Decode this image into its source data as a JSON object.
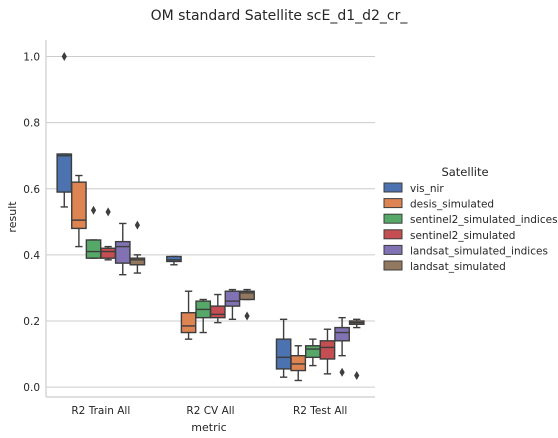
{
  "chart_data": {
    "type": "box",
    "title": "OM standard Satellite scE_d1_d2_cr_",
    "xlabel": "metric",
    "ylabel": "result",
    "ylim": [
      -0.03,
      1.05
    ],
    "yticks": [
      "0.0",
      "0.2",
      "0.4",
      "0.6",
      "0.8",
      "1.0"
    ],
    "grid": "horizontal",
    "legend_position": "right",
    "legend_title": "Satellite",
    "categories": [
      "R2 Train All",
      "R2 CV All",
      "R2 Test All"
    ],
    "series": [
      {
        "name": "vis_nir",
        "color": "#4c72b0",
        "boxes": [
          {
            "whislo": 0.545,
            "q1": 0.59,
            "med": 0.7,
            "q3": 0.705,
            "whishi": 0.705,
            "fliers": [
              1.0
            ]
          },
          {
            "whislo": 0.37,
            "q1": 0.38,
            "med": 0.385,
            "q3": 0.395,
            "whishi": 0.395,
            "fliers": []
          },
          {
            "whislo": 0.03,
            "q1": 0.055,
            "med": 0.09,
            "q3": 0.145,
            "whishi": 0.205,
            "fliers": []
          }
        ]
      },
      {
        "name": "desis_simulated",
        "color": "#dd8452",
        "boxes": [
          {
            "whislo": 0.425,
            "q1": 0.48,
            "med": 0.505,
            "q3": 0.62,
            "whishi": 0.64,
            "fliers": []
          },
          {
            "whislo": 0.145,
            "q1": 0.165,
            "med": 0.185,
            "q3": 0.225,
            "whishi": 0.29,
            "fliers": []
          },
          {
            "whislo": 0.02,
            "q1": 0.05,
            "med": 0.07,
            "q3": 0.095,
            "whishi": 0.125,
            "fliers": []
          }
        ]
      },
      {
        "name": "sentinel2_simulated_indices",
        "color": "#55a868",
        "boxes": [
          {
            "whislo": 0.39,
            "q1": 0.39,
            "med": 0.41,
            "q3": 0.445,
            "whishi": 0.445,
            "fliers": [
              0.535
            ]
          },
          {
            "whislo": 0.165,
            "q1": 0.21,
            "med": 0.235,
            "q3": 0.26,
            "whishi": 0.265,
            "fliers": []
          },
          {
            "whislo": 0.065,
            "q1": 0.09,
            "med": 0.115,
            "q3": 0.125,
            "whishi": 0.145,
            "fliers": []
          }
        ]
      },
      {
        "name": "sentinel2_simulated",
        "color": "#c44e52",
        "boxes": [
          {
            "whislo": 0.385,
            "q1": 0.39,
            "med": 0.41,
            "q3": 0.42,
            "whishi": 0.425,
            "fliers": [
              0.53
            ]
          },
          {
            "whislo": 0.195,
            "q1": 0.21,
            "med": 0.22,
            "q3": 0.245,
            "whishi": 0.28,
            "fliers": []
          },
          {
            "whislo": 0.04,
            "q1": 0.085,
            "med": 0.12,
            "q3": 0.14,
            "whishi": 0.175,
            "fliers": []
          }
        ]
      },
      {
        "name": "landsat_simulated_indices",
        "color": "#8172b3",
        "boxes": [
          {
            "whislo": 0.34,
            "q1": 0.375,
            "med": 0.425,
            "q3": 0.44,
            "whishi": 0.495,
            "fliers": []
          },
          {
            "whislo": 0.205,
            "q1": 0.245,
            "med": 0.26,
            "q3": 0.29,
            "whishi": 0.295,
            "fliers": []
          },
          {
            "whislo": 0.095,
            "q1": 0.14,
            "med": 0.165,
            "q3": 0.18,
            "whishi": 0.21,
            "fliers": [
              0.045
            ]
          }
        ]
      },
      {
        "name": "landsat_simulated",
        "color": "#937860",
        "boxes": [
          {
            "whislo": 0.345,
            "q1": 0.37,
            "med": 0.385,
            "q3": 0.39,
            "whishi": 0.4,
            "fliers": [
              0.49
            ]
          },
          {
            "whislo": 0.265,
            "q1": 0.265,
            "med": 0.285,
            "q3": 0.29,
            "whishi": 0.295,
            "fliers": [
              0.215
            ]
          },
          {
            "whislo": 0.18,
            "q1": 0.19,
            "med": 0.195,
            "q3": 0.2,
            "whishi": 0.205,
            "fliers": [
              0.035
            ]
          }
        ]
      }
    ]
  }
}
